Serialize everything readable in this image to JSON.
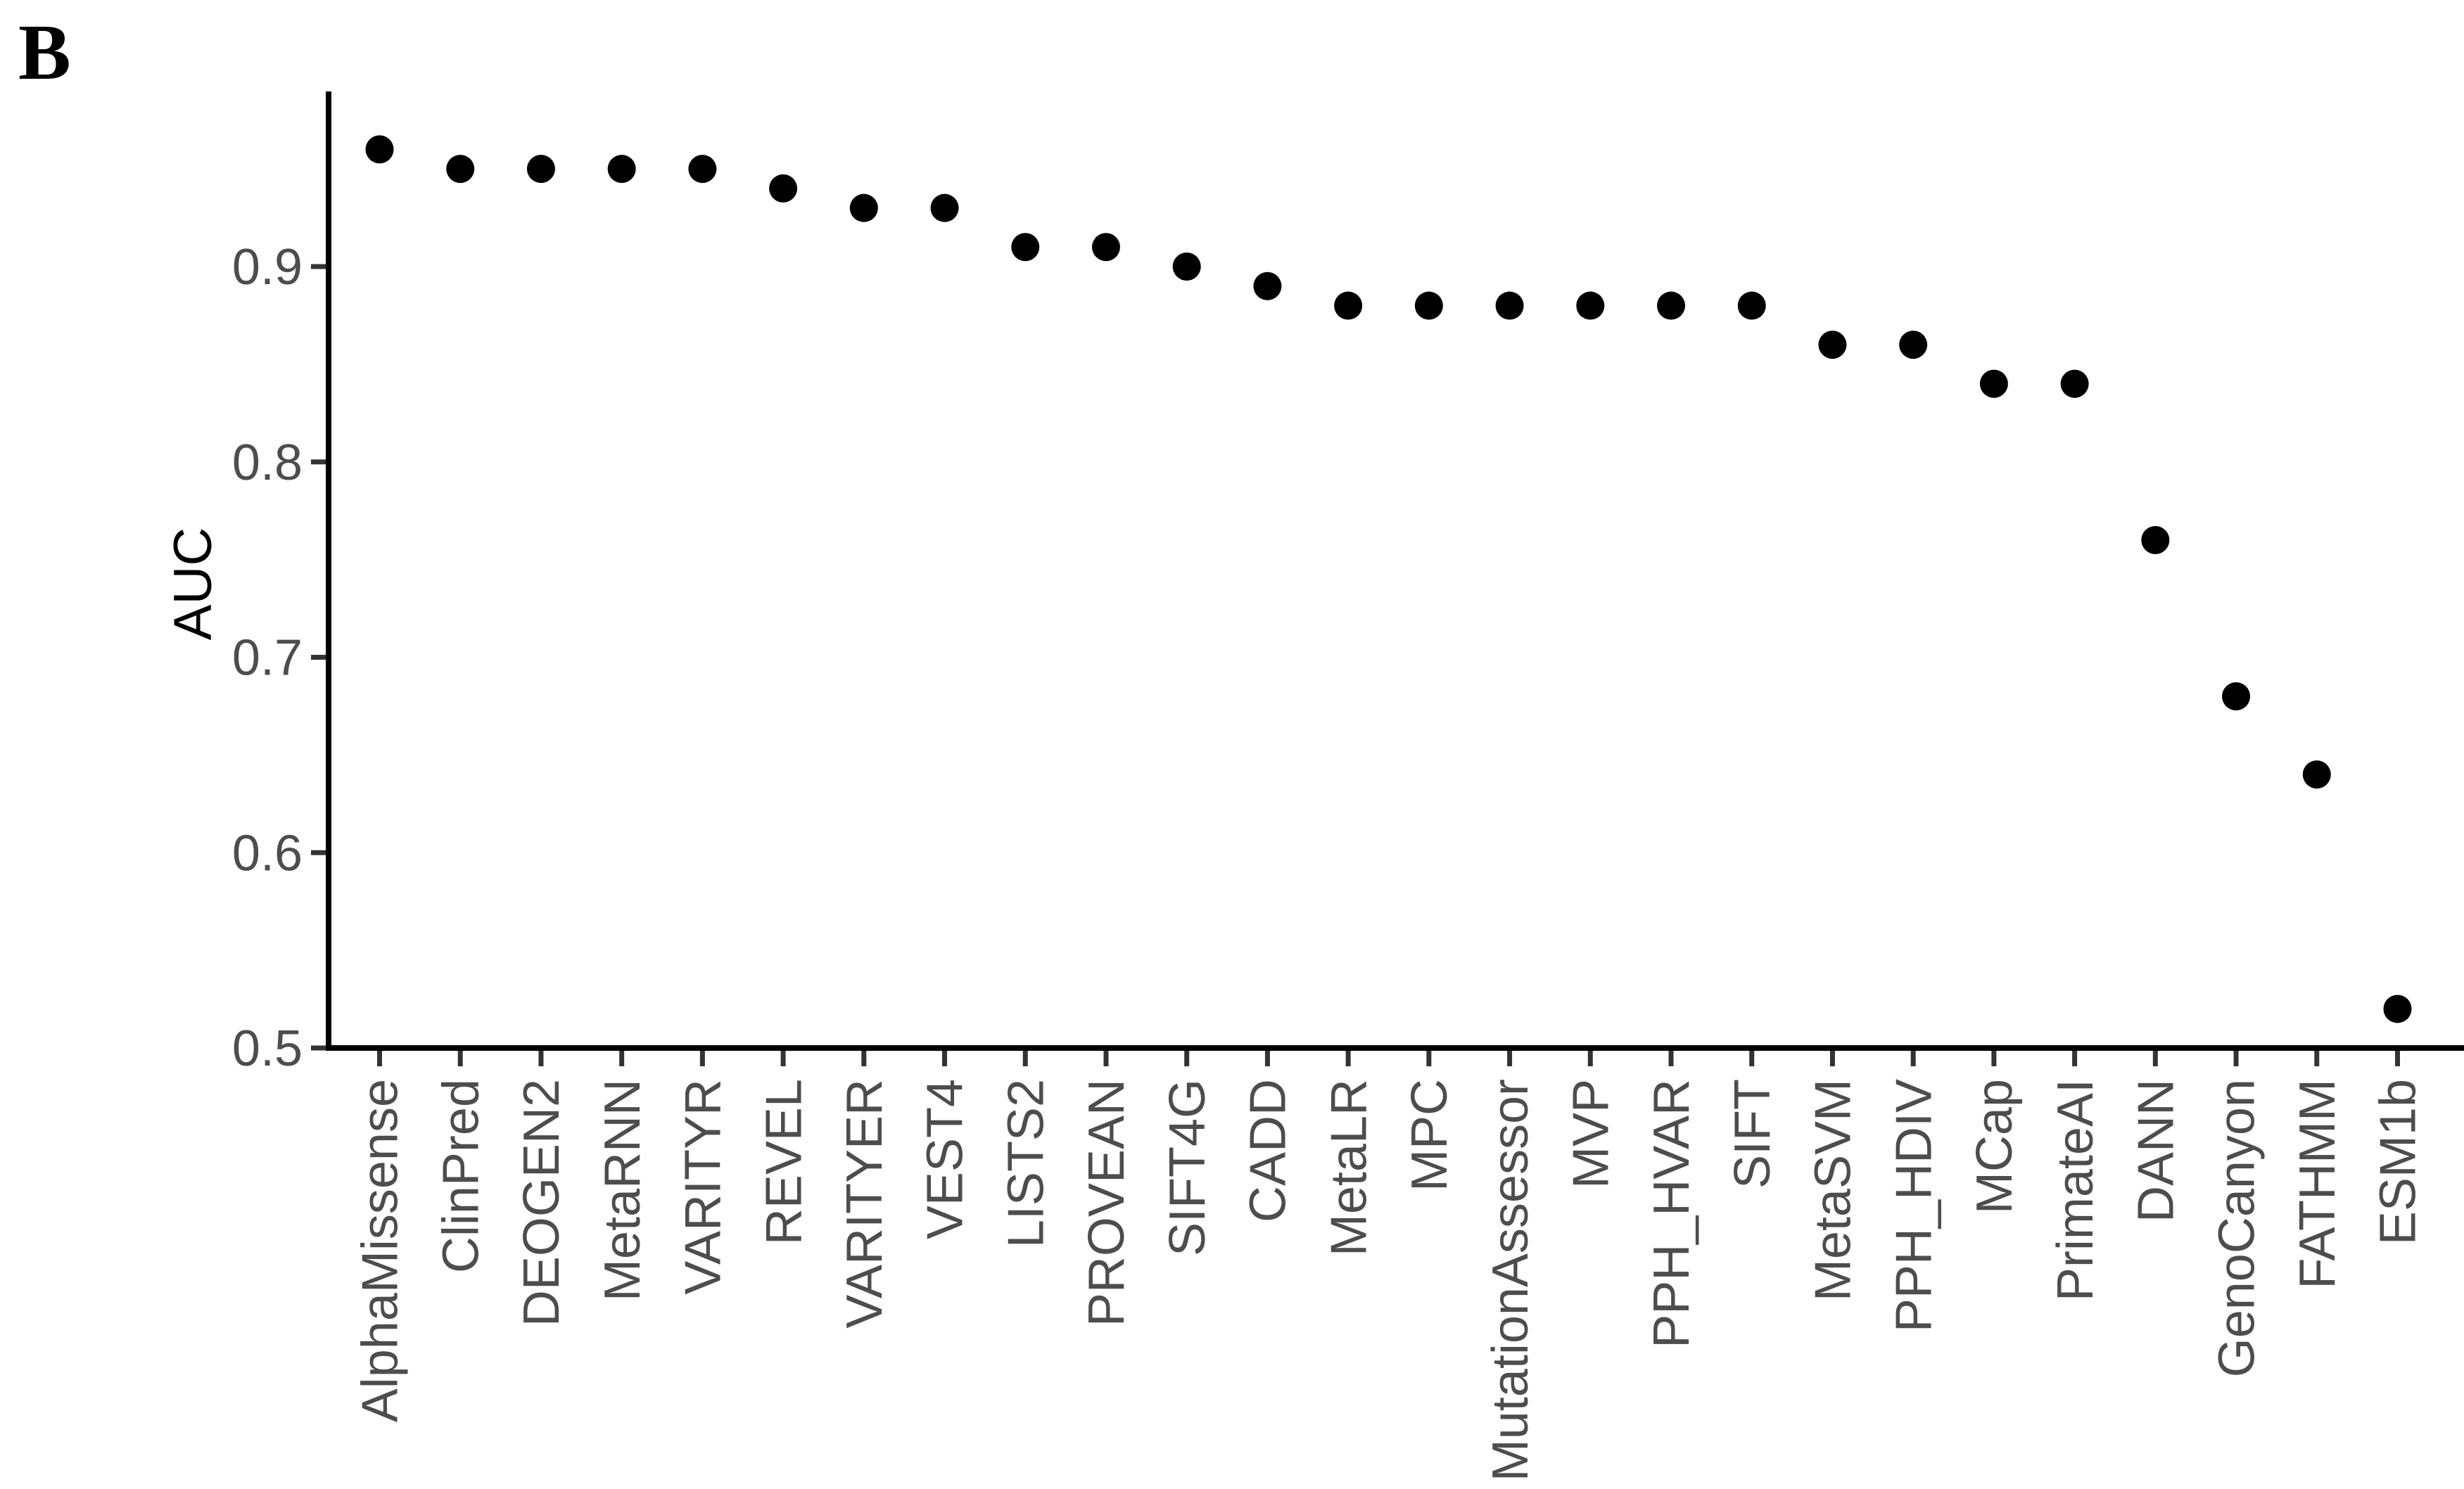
{
  "panel_label": "B",
  "colors": {
    "dot": "#000000",
    "axis_line": "#000000",
    "tick_mark": "#333333",
    "tick_text": "#4d4d4d",
    "axis_title_text": "#000000",
    "background": "#ffffff"
  },
  "chart_data": {
    "type": "scatter",
    "title": "",
    "xlabel": "",
    "ylabel": "AUC",
    "ylim": [
      0.5,
      0.99
    ],
    "yticks": [
      0.9,
      0.8,
      0.7,
      0.6,
      0.5
    ],
    "ytick_labels": [
      "0.9",
      "0.8",
      "0.7",
      "0.6",
      "0.5"
    ],
    "grid": false,
    "legend": "none",
    "categories": [
      "AlphaMissense",
      "ClinPred",
      "DEOGEN2",
      "MetaRNN",
      "VARITYR",
      "REVEL",
      "VARITYER",
      "VEST4",
      "LISTS2",
      "PROVEAN",
      "SIFT4G",
      "CADD",
      "MetaLR",
      "MPC",
      "MutationAssessor",
      "MVP",
      "PPH_HVAR",
      "SIFT",
      "MetaSVM",
      "PPH_HDIV",
      "MCap",
      "PrimateAI",
      "DANN",
      "GenoCanyon",
      "FATHMM",
      "ESM1b"
    ],
    "values": [
      0.96,
      0.95,
      0.95,
      0.95,
      0.95,
      0.94,
      0.93,
      0.93,
      0.91,
      0.91,
      0.9,
      0.89,
      0.88,
      0.88,
      0.88,
      0.88,
      0.88,
      0.88,
      0.86,
      0.86,
      0.84,
      0.84,
      0.76,
      0.68,
      0.64,
      0.52
    ]
  }
}
